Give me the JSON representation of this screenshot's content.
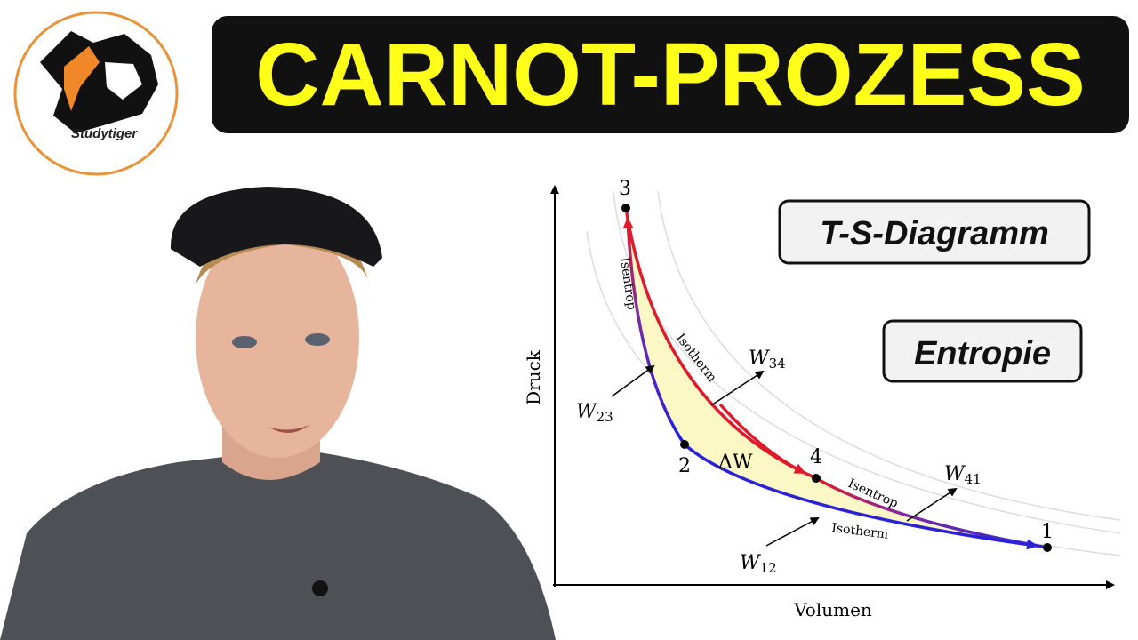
{
  "header": {
    "title": "CARNOT-PROZESS",
    "logo_text": "Studytiger"
  },
  "badges": [
    "T-S-Diagramm",
    "Entropie"
  ],
  "diagram": {
    "axes": {
      "y_label": "Druck",
      "x_label": "Volumen"
    },
    "points": [
      "1",
      "2",
      "3",
      "4"
    ],
    "process_labels": {
      "isentrop_23": "Isentrop",
      "isotherm_34": "Isotherm",
      "isentrop_41": "Isentrop",
      "isotherm_12": "Isotherm"
    },
    "work_labels": [
      {
        "symbol": "W",
        "sub": "23"
      },
      {
        "symbol": "W",
        "sub": "34"
      },
      {
        "symbol": "W",
        "sub": "41"
      },
      {
        "symbol": "W",
        "sub": "12"
      }
    ],
    "net_work": "ΔW"
  }
}
